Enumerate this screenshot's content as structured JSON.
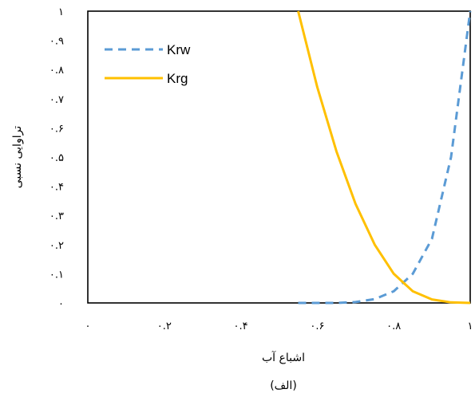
{
  "chart_data": {
    "type": "line",
    "xlim": [
      0,
      1
    ],
    "ylim": [
      0,
      1
    ],
    "x_ticks": [
      0,
      0.2,
      0.4,
      0.6,
      0.8,
      1
    ],
    "x_tick_labels": [
      "٠",
      "٠.٢",
      "٠.۴",
      "٠.۶",
      "٠.٨",
      "١"
    ],
    "y_ticks": [
      0,
      0.1,
      0.2,
      0.3,
      0.4,
      0.5,
      0.6,
      0.7,
      0.8,
      0.9,
      1
    ],
    "y_tick_labels": [
      "٠",
      "٠.١",
      "٠.٢",
      "٠.٣",
      "٠.۴",
      "٠.۵",
      "٠.۶",
      "٠.٧",
      "٠.٨",
      "٠.٩",
      "١"
    ],
    "xlabel": "اشباع آب",
    "ylabel": "تراوایی نسبی",
    "caption": "(الف)",
    "grid": false,
    "legend_position": "top-left",
    "series": [
      {
        "name": "Krw",
        "color": "#5B9BD5",
        "style": "dashed",
        "x": [
          0.55,
          0.6,
          0.65,
          0.7,
          0.75,
          0.8,
          0.85,
          0.9,
          0.95,
          1.0
        ],
        "y": [
          0.0,
          0.0,
          0.0,
          0.003,
          0.013,
          0.04,
          0.1,
          0.22,
          0.5,
          1.0
        ]
      },
      {
        "name": "Krg",
        "color": "#FFC000",
        "style": "solid",
        "x": [
          0.55,
          0.6,
          0.65,
          0.7,
          0.75,
          0.8,
          0.85,
          0.9,
          0.95,
          1.0
        ],
        "y": [
          1.0,
          0.74,
          0.52,
          0.34,
          0.2,
          0.1,
          0.04,
          0.012,
          0.002,
          0.0
        ]
      }
    ]
  }
}
